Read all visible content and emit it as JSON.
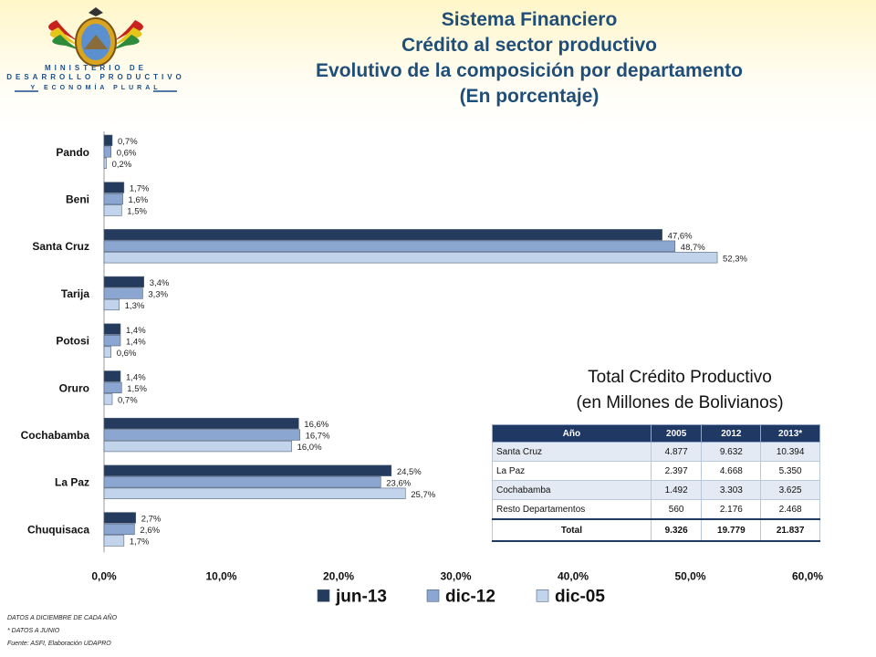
{
  "header": {
    "ministry_line1": "MINISTERIO DE",
    "ministry_line2": "DESARROLLO PRODUCTIVO",
    "ministry_line3": "Y ECONOMÍA PLURAL",
    "title_lines": [
      "Sistema Financiero",
      "Crédito al sector productivo",
      "Evolutivo de la composición por departamento",
      "(En porcentaje)"
    ]
  },
  "chart_data": {
    "type": "bar",
    "orientation": "horizontal",
    "categories": [
      "Pando",
      "Beni",
      "Santa Cruz",
      "Tarija",
      "Potosi",
      "Oruro",
      "Cochabamba",
      "La Paz",
      "Chuquisaca"
    ],
    "series": [
      {
        "name": "jun-13",
        "color": "#243b5e",
        "values": [
          0.7,
          1.7,
          47.6,
          3.4,
          1.4,
          1.4,
          16.6,
          24.5,
          2.7
        ],
        "labels": [
          "0,7%",
          "1,7%",
          "47,6%",
          "3,4%",
          "1,4%",
          "1,4%",
          "16,6%",
          "24,5%",
          "2,7%"
        ]
      },
      {
        "name": "dic-12",
        "color": "#8aa6d1",
        "values": [
          0.6,
          1.6,
          48.7,
          3.3,
          1.4,
          1.5,
          16.7,
          23.6,
          2.6
        ],
        "labels": [
          "0,6%",
          "1,6%",
          "48,7%",
          "3,3%",
          "1,4%",
          "1,5%",
          "16,7%",
          "23,6%",
          "2,6%"
        ]
      },
      {
        "name": "dic-05",
        "color": "#c2d4ec",
        "values": [
          0.2,
          1.5,
          52.3,
          1.3,
          0.6,
          0.7,
          16.0,
          25.7,
          1.7
        ],
        "labels": [
          "0,2%",
          "1,5%",
          "52,3%",
          "1,3%",
          "0,6%",
          "0,7%",
          "16,0%",
          "25,7%",
          "1,7%"
        ]
      }
    ],
    "xlim": [
      0,
      60
    ],
    "xticks": [
      "0,0%",
      "10,0%",
      "20,0%",
      "30,0%",
      "40,0%",
      "50,0%",
      "60,0%"
    ],
    "grid": false,
    "legend": "bottom"
  },
  "table": {
    "title_line1": "Total Crédito Productivo",
    "title_line2": "(en Millones de Bolivianos)",
    "headers": [
      "Año",
      "2005",
      "2012",
      "2013*"
    ],
    "rows": [
      [
        "Santa Cruz",
        "4.877",
        "9.632",
        "10.394"
      ],
      [
        "La Paz",
        "2.397",
        "4.668",
        "5.350"
      ],
      [
        "Cochabamba",
        "1.492",
        "3.303",
        "3.625"
      ],
      [
        "Resto Departamentos",
        "560",
        "2.176",
        "2.468"
      ]
    ],
    "total": [
      "Total",
      "9.326",
      "19.779",
      "21.837"
    ]
  },
  "notes": [
    "DATOS A DICIEMBRE DE CADA AÑO",
    "* DATOS A JUNIO",
    "Fuente: ASFI, Elaboración UDAPRO"
  ]
}
